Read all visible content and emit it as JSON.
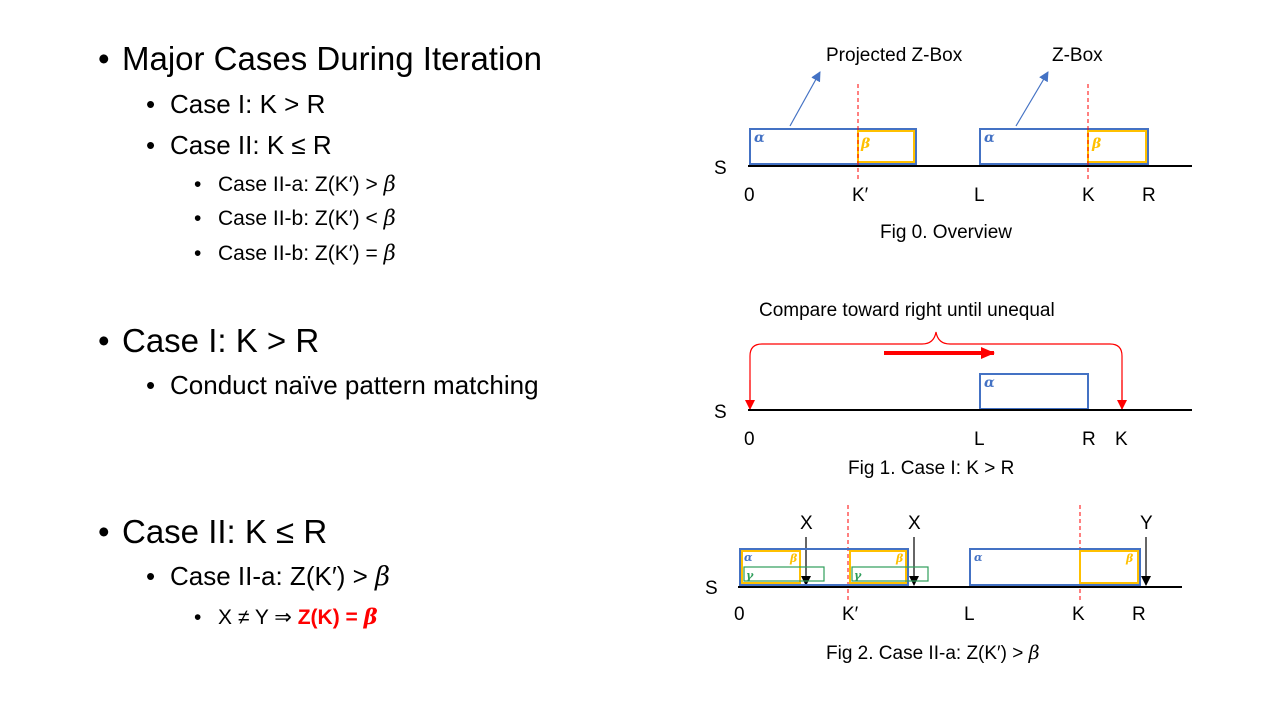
{
  "bullets": {
    "major_title": "Major Cases During Iteration",
    "case1": "Case I: K > R",
    "case2": "Case II: K ≤ R",
    "case2a": "Case II-a: Z(K′) > ",
    "case2b": "Case II-b: Z(K′) < ",
    "case2c": "Case II-b: Z(K′) = ",
    "beta": "β",
    "section_case1_title": "Case I: K > R",
    "section_case1_item": "Conduct naïve pattern matching",
    "section_case2_title": "Case II: K ≤ R",
    "section_case2_item": "Case II-a: Z(K′) > ",
    "section_case2_sub_prefix": "X ≠ Y ⇒ ",
    "section_case2_sub_result": "Z(K) = "
  },
  "fig0": {
    "projected_label": "Projected Z-Box",
    "zbox_label": "Z-Box",
    "s_label": "S",
    "ticks": [
      "0",
      "K′",
      "L",
      "K",
      "R"
    ],
    "alpha": "α",
    "beta": "β",
    "caption": "Fig 0. Overview"
  },
  "fig1": {
    "compare_label": "Compare toward right until unequal",
    "s_label": "S",
    "ticks": [
      "0",
      "L",
      "R",
      "K"
    ],
    "alpha": "α",
    "caption": "Fig 1. Case I: K > R"
  },
  "fig2": {
    "x_label": "X",
    "y_label": "Y",
    "s_label": "S",
    "ticks": [
      "0",
      "K′",
      "L",
      "K",
      "R"
    ],
    "alpha": "α",
    "beta": "β",
    "gamma": "γ",
    "caption_prefix": "Fig 2. Case II-a: Z(K′) > ",
    "caption_beta": "β"
  },
  "colors": {
    "blue": "#4472c4",
    "gold": "#ffc000",
    "green": "#2e9e5b",
    "red": "#ff0000"
  }
}
